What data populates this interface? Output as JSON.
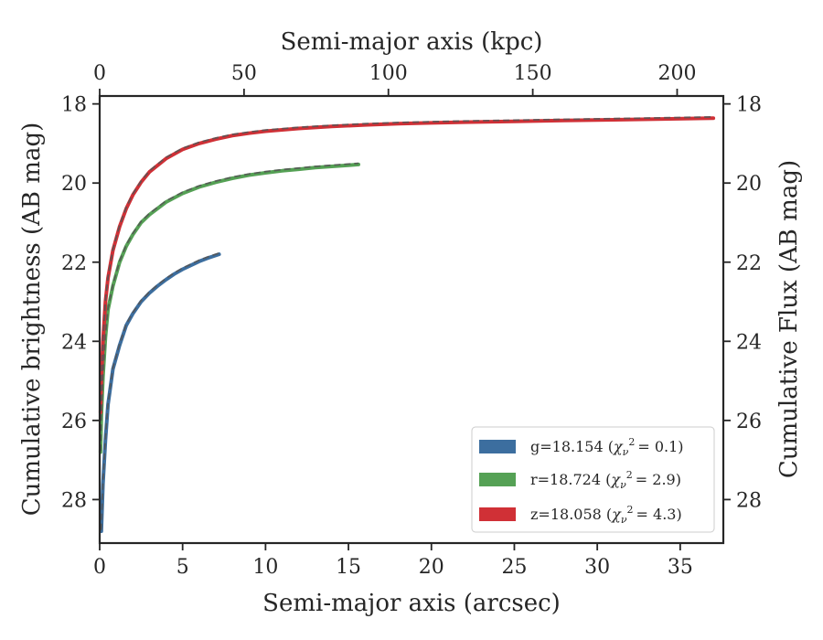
{
  "chart_data": {
    "type": "line",
    "xlabel": "Semi-major axis (arcsec)",
    "ylabel": "Cumulative brightness (AB mag)",
    "x2label": "Semi-major axis (kpc)",
    "y2label": "Cumulative Flux (AB mag)",
    "xlim": [
      0,
      37.6
    ],
    "ylim": [
      29.1,
      17.8
    ],
    "x2lim": [
      0,
      216
    ],
    "y_inverted": true,
    "grid": false,
    "legend_position": "lower-right",
    "x_ticks": [
      0,
      5,
      10,
      15,
      20,
      25,
      30,
      35
    ],
    "x2_ticks": [
      0,
      50,
      100,
      150,
      200
    ],
    "y_ticks": [
      18,
      20,
      22,
      24,
      26,
      28
    ],
    "model_style": "dashed gray",
    "series": [
      {
        "name": "g=18.154",
        "legend_prefix": "g=18.154 (",
        "legend_chi_value": "= 0.1)",
        "color": "#3c6e9f",
        "x": [
          0.1,
          0.2,
          0.35,
          0.5,
          0.8,
          1.2,
          1.6,
          2.0,
          2.5,
          3.0,
          3.5,
          4.0,
          4.5,
          5.0,
          5.5,
          6.0,
          6.5,
          7.2
        ],
        "y": [
          28.8,
          27.6,
          26.5,
          25.6,
          24.7,
          24.1,
          23.6,
          23.3,
          23.0,
          22.78,
          22.6,
          22.44,
          22.3,
          22.18,
          22.08,
          21.98,
          21.9,
          21.8
        ]
      },
      {
        "name": "r=18.724",
        "legend_prefix": "r=18.724 (",
        "legend_chi_value": "= 2.9)",
        "color": "#55a155",
        "x": [
          0.05,
          0.1,
          0.2,
          0.35,
          0.5,
          0.8,
          1.2,
          1.6,
          2.0,
          2.5,
          3.0,
          4.0,
          5.0,
          6.0,
          7.0,
          8.0,
          9.0,
          10.0,
          11.0,
          12.0,
          13.0,
          14.0,
          15.0,
          15.6
        ],
        "y": [
          26.8,
          25.9,
          24.9,
          23.9,
          23.2,
          22.6,
          22.0,
          21.6,
          21.3,
          21.0,
          20.8,
          20.48,
          20.26,
          20.1,
          19.98,
          19.88,
          19.8,
          19.74,
          19.69,
          19.65,
          19.61,
          19.58,
          19.55,
          19.53
        ]
      },
      {
        "name": "z=18.058",
        "legend_prefix": "z=18.058 (",
        "legend_chi_value": "= 4.3)",
        "color": "#d03036",
        "x": [
          0.05,
          0.1,
          0.2,
          0.35,
          0.5,
          0.8,
          1.2,
          1.6,
          2.0,
          2.5,
          3.0,
          4.0,
          5.0,
          6.0,
          7.0,
          8.0,
          9.0,
          10.0,
          12.0,
          14.0,
          16.0,
          18.0,
          20.0,
          22.0,
          25.0,
          28.0,
          31.0,
          34.0,
          37.0
        ],
        "y": [
          25.8,
          25.0,
          24.0,
          23.0,
          22.4,
          21.7,
          21.1,
          20.65,
          20.3,
          19.98,
          19.72,
          19.38,
          19.15,
          19.0,
          18.89,
          18.8,
          18.74,
          18.69,
          18.62,
          18.57,
          18.53,
          18.5,
          18.48,
          18.46,
          18.44,
          18.42,
          18.4,
          18.38,
          18.36
        ]
      }
    ]
  }
}
